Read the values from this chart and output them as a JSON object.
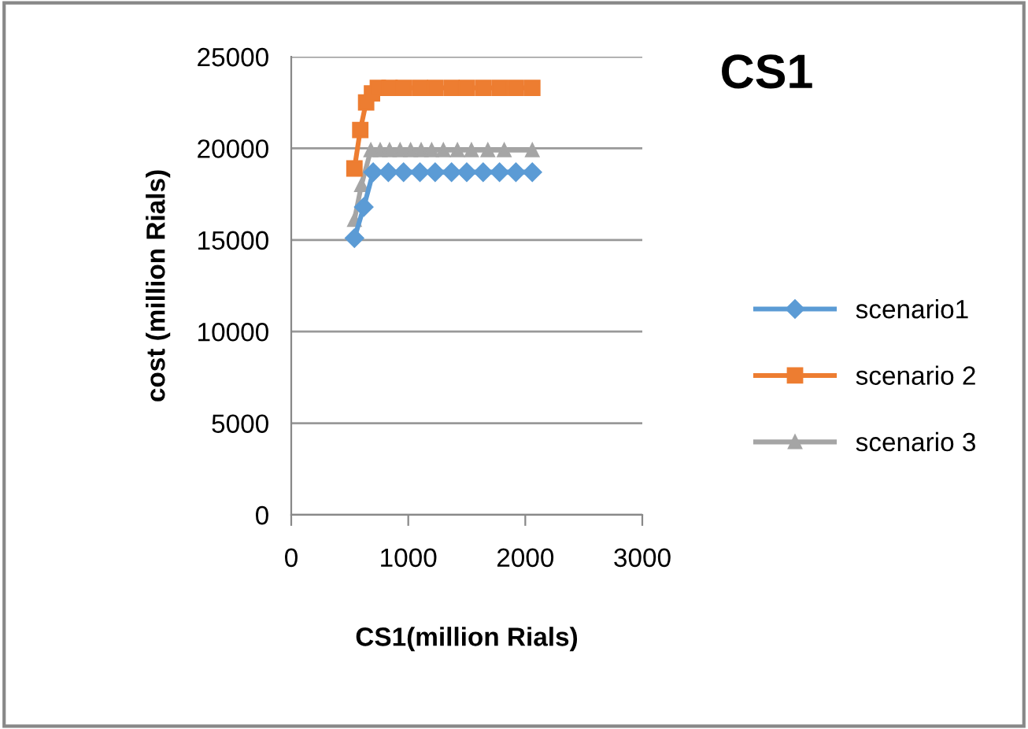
{
  "chart_data": {
    "type": "line",
    "title": "CS1",
    "xlabel": "CS1(million Rials)",
    "ylabel": "cost (million Rials)",
    "xlim": [
      0,
      3000
    ],
    "xticks": [
      0,
      1000,
      2000,
      3000
    ],
    "ylim": [
      0,
      25000
    ],
    "yticks": [
      0,
      5000,
      10000,
      15000,
      20000,
      25000
    ],
    "grid": "y",
    "legend": "right",
    "series": [
      {
        "name": "scenario1",
        "color": "#5b9bd5",
        "marker": "diamond",
        "x": [
          540,
          620,
          700,
          830,
          960,
          1100,
          1230,
          1370,
          1500,
          1640,
          1780,
          1920,
          2060
        ],
        "values": [
          15100,
          16800,
          18700,
          18700,
          18700,
          18700,
          18700,
          18700,
          18700,
          18700,
          18700,
          18700,
          18700
        ]
      },
      {
        "name": "scenario 2",
        "color": "#ed7d31",
        "marker": "square",
        "x": [
          540,
          590,
          640,
          690,
          740,
          840,
          960,
          1100,
          1230,
          1370,
          1500,
          1640,
          1780,
          1920,
          2060
        ],
        "values": [
          18900,
          21000,
          22500,
          23000,
          23300,
          23300,
          23300,
          23300,
          23300,
          23300,
          23300,
          23300,
          23300,
          23300,
          23300
        ]
      },
      {
        "name": "scenario 3",
        "color": "#a5a5a5",
        "marker": "triangle",
        "x": [
          540,
          600,
          680,
          760,
          840,
          930,
          1020,
          1110,
          1200,
          1300,
          1420,
          1540,
          1680,
          1820,
          2060
        ],
        "values": [
          16100,
          18000,
          19900,
          19900,
          19900,
          19900,
          19900,
          19900,
          19900,
          19900,
          19900,
          19900,
          19900,
          19900,
          19900
        ]
      }
    ]
  }
}
